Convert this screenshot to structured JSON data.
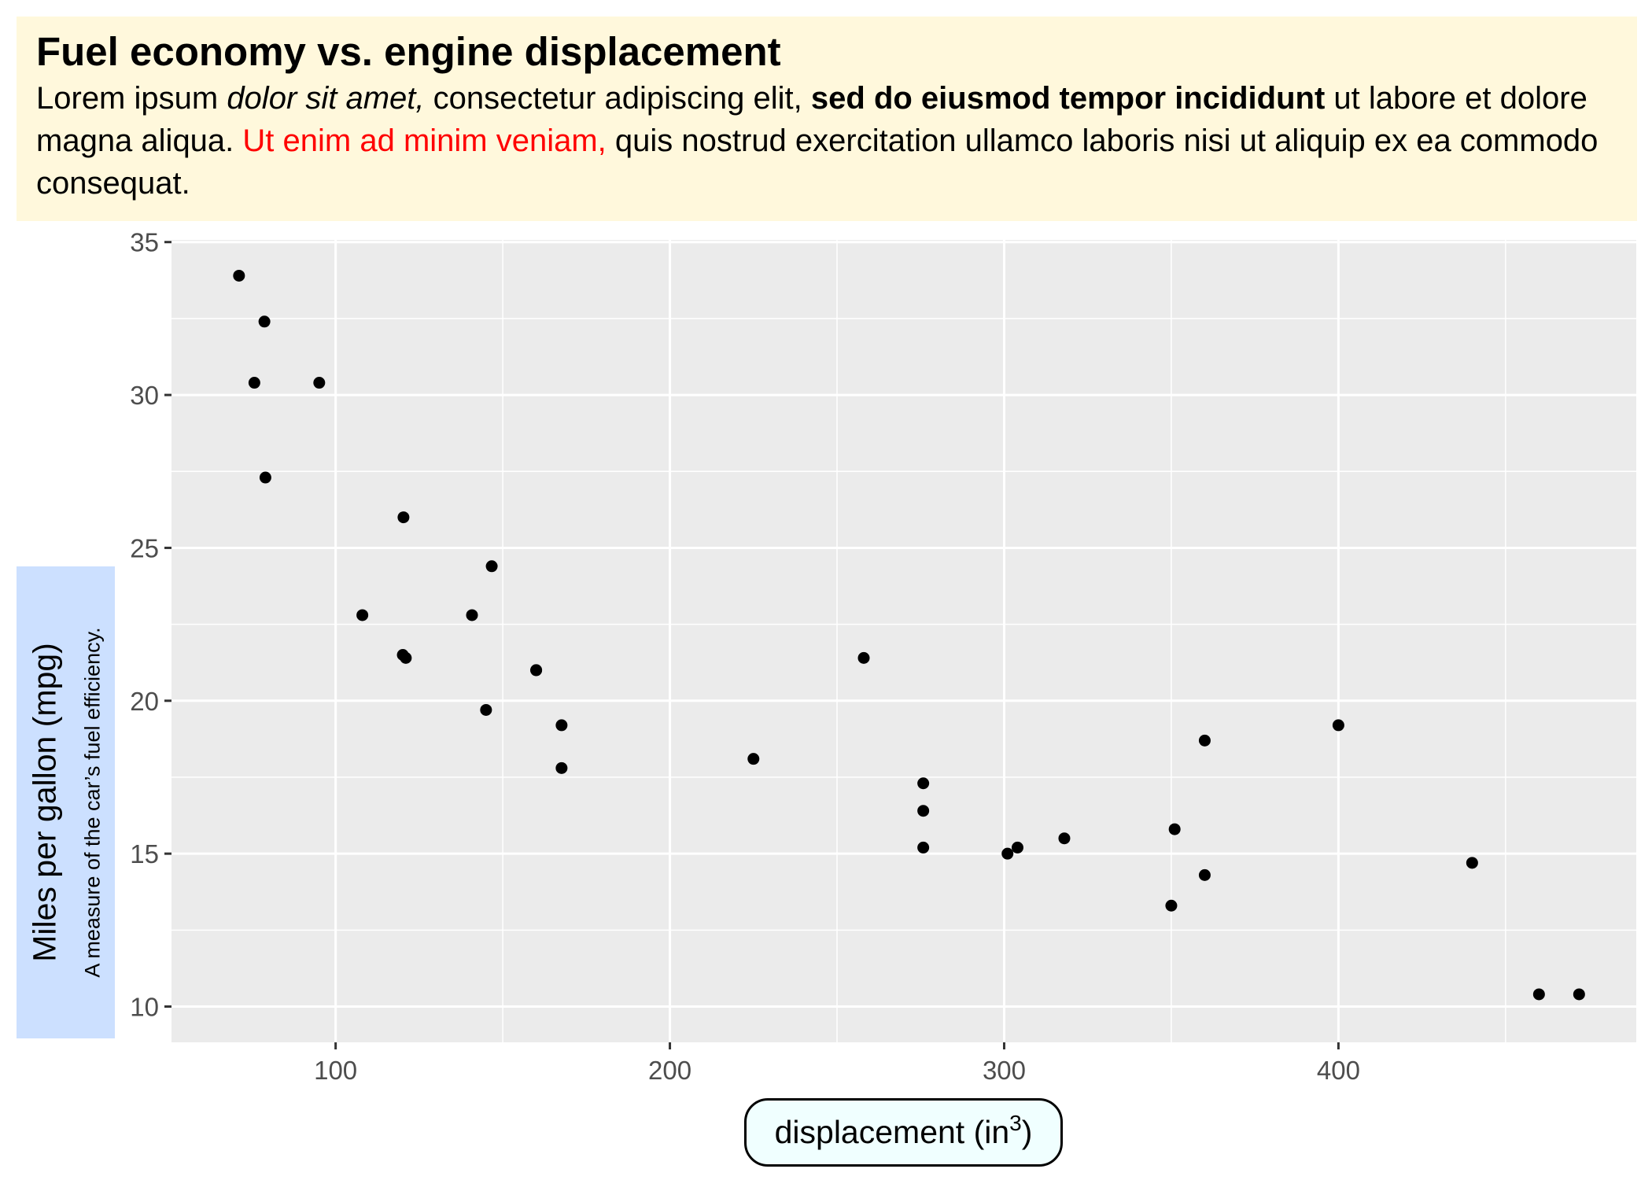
{
  "chart_data": {
    "type": "scatter",
    "title": "Fuel economy vs. engine displacement",
    "subtitle": [
      {
        "text": "Lorem ipsum ",
        "style": "normal"
      },
      {
        "text": "dolor sit amet,",
        "style": "italic"
      },
      {
        "text": " consectetur adipiscing elit, ",
        "style": "normal"
      },
      {
        "text": "sed do eiusmod tempor incididunt",
        "style": "bold"
      },
      {
        "text": " ut labore et dolore magna aliqua. ",
        "style": "normal"
      },
      {
        "text": "Ut enim ad minim veniam,",
        "style": "red"
      },
      {
        "text": " quis nostrud exercitation ullamco laboris nisi ut aliquip ex ea commodo consequat.",
        "style": "normal"
      }
    ],
    "xlabel": "displacement (in",
    "xlabel_superscript": "3",
    "xlabel_suffix": ")",
    "ylabel": "Miles per gallon (mpg)",
    "ylabel_subtitle": "A measure of the car’s fuel efficiency.",
    "xlim": [
      50.9,
      489.1
    ],
    "ylim": [
      8.83,
      35.07
    ],
    "x_ticks": [
      100,
      200,
      300,
      400
    ],
    "y_ticks": [
      10,
      15,
      20,
      25,
      30,
      35
    ],
    "grid": true,
    "points": [
      {
        "x": 160,
        "y": 21.0
      },
      {
        "x": 160,
        "y": 21.0
      },
      {
        "x": 108,
        "y": 22.8
      },
      {
        "x": 258,
        "y": 21.4
      },
      {
        "x": 360,
        "y": 18.7
      },
      {
        "x": 225,
        "y": 18.1
      },
      {
        "x": 360,
        "y": 14.3
      },
      {
        "x": 146.7,
        "y": 24.4
      },
      {
        "x": 140.8,
        "y": 22.8
      },
      {
        "x": 167.6,
        "y": 19.2
      },
      {
        "x": 167.6,
        "y": 17.8
      },
      {
        "x": 275.8,
        "y": 16.4
      },
      {
        "x": 275.8,
        "y": 17.3
      },
      {
        "x": 275.8,
        "y": 15.2
      },
      {
        "x": 472,
        "y": 10.4
      },
      {
        "x": 460,
        "y": 10.4
      },
      {
        "x": 440,
        "y": 14.7
      },
      {
        "x": 78.7,
        "y": 32.4
      },
      {
        "x": 75.7,
        "y": 30.4
      },
      {
        "x": 71.1,
        "y": 33.9
      },
      {
        "x": 120.1,
        "y": 21.5
      },
      {
        "x": 318,
        "y": 15.5
      },
      {
        "x": 304,
        "y": 15.2
      },
      {
        "x": 350,
        "y": 13.3
      },
      {
        "x": 400,
        "y": 19.2
      },
      {
        "x": 79,
        "y": 27.3
      },
      {
        "x": 120.3,
        "y": 26.0
      },
      {
        "x": 95.1,
        "y": 30.4
      },
      {
        "x": 351,
        "y": 15.8
      },
      {
        "x": 145,
        "y": 19.7
      },
      {
        "x": 301,
        "y": 15.0
      },
      {
        "x": 121,
        "y": 21.4
      }
    ],
    "colors": {
      "panel_background": "#ebebeb",
      "grid": "#ffffff",
      "point": "#000000",
      "title_background": "#fff8dc",
      "ylabel_background": "#cce0ff",
      "xlabel_background": "#f0ffff"
    }
  }
}
